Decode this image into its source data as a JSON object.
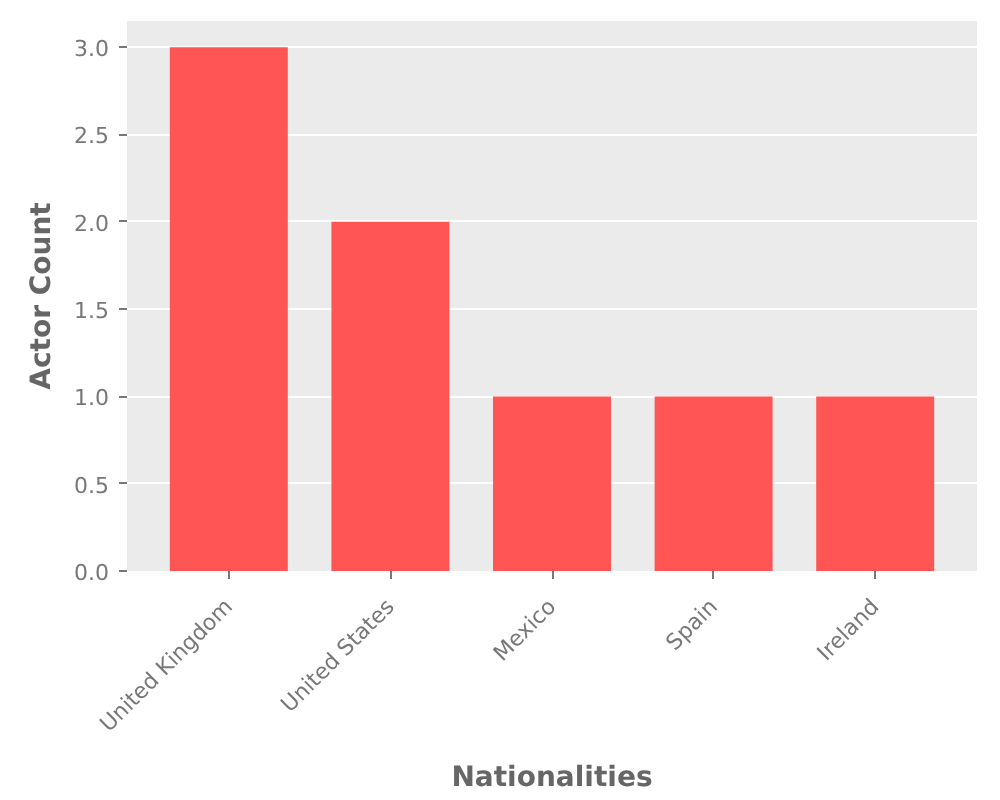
{
  "chart_data": {
    "type": "bar",
    "xlabel": "Nationalities",
    "ylabel": "Actor Count",
    "categories": [
      "United Kingdom",
      "United States",
      "Mexico",
      "Spain",
      "Ireland"
    ],
    "values": [
      3,
      2,
      1,
      1,
      1
    ],
    "color": "#ff5555",
    "ylim": [
      0,
      3.15
    ],
    "yticks": [
      {
        "value": 0,
        "label": "0.0"
      },
      0.5,
      {
        "value": 1,
        "label": "1.0"
      },
      1.5,
      {
        "value": 2,
        "label": "2.0"
      },
      2.5,
      {
        "value": 3,
        "label": "3.0"
      }
    ],
    "grid": "y"
  }
}
